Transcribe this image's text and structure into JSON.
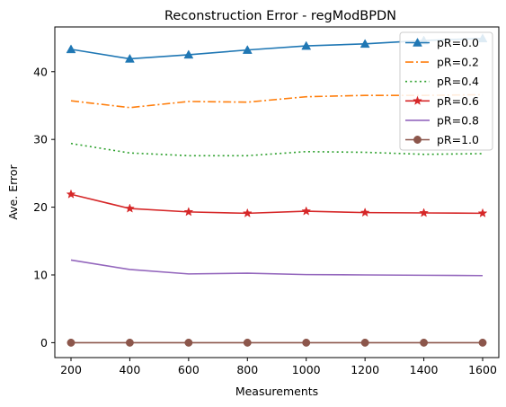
{
  "chart_data": {
    "type": "line",
    "title": "Reconstruction Error - regModBPDN",
    "xlabel": "Measurements",
    "ylabel": "Ave. Error",
    "x": [
      200,
      400,
      600,
      800,
      1000,
      1200,
      1400,
      1600
    ],
    "xlim": [
      145,
      1655
    ],
    "ylim": [
      -2.2,
      46.6
    ],
    "xticks": [
      200,
      400,
      600,
      800,
      1000,
      1200,
      1400,
      1600
    ],
    "yticks": [
      0,
      10,
      20,
      30,
      40
    ],
    "legend_position": "right",
    "grid": false,
    "series": [
      {
        "name": "pR=0.0",
        "color": "#1f77b4",
        "linestyle": "solid",
        "marker": "triangle",
        "values": [
          43.3,
          41.9,
          42.5,
          43.2,
          43.8,
          44.1,
          44.6,
          44.9
        ]
      },
      {
        "name": "pR=0.2",
        "color": "#ff7f0e",
        "linestyle": "dashdot",
        "marker": "none",
        "values": [
          35.7,
          34.7,
          35.6,
          35.5,
          36.3,
          36.5,
          36.5,
          36.6
        ]
      },
      {
        "name": "pR=0.4",
        "color": "#2ca02c",
        "linestyle": "dotted",
        "marker": "none",
        "values": [
          29.4,
          28.0,
          27.6,
          27.6,
          28.2,
          28.1,
          27.8,
          27.9
        ]
      },
      {
        "name": "pR=0.6",
        "color": "#d62728",
        "linestyle": "solid",
        "marker": "star",
        "values": [
          21.9,
          19.8,
          19.3,
          19.1,
          19.4,
          19.2,
          19.15,
          19.1
        ]
      },
      {
        "name": "pR=0.8",
        "color": "#9467bd",
        "linestyle": "solid",
        "marker": "none",
        "values": [
          12.2,
          10.8,
          10.15,
          10.25,
          10.05,
          10.0,
          9.95,
          9.9
        ]
      },
      {
        "name": "pR=1.0",
        "color": "#8c564b",
        "linestyle": "solid",
        "marker": "circle",
        "values": [
          0,
          0,
          0,
          0,
          0,
          0,
          0,
          0
        ]
      }
    ]
  }
}
